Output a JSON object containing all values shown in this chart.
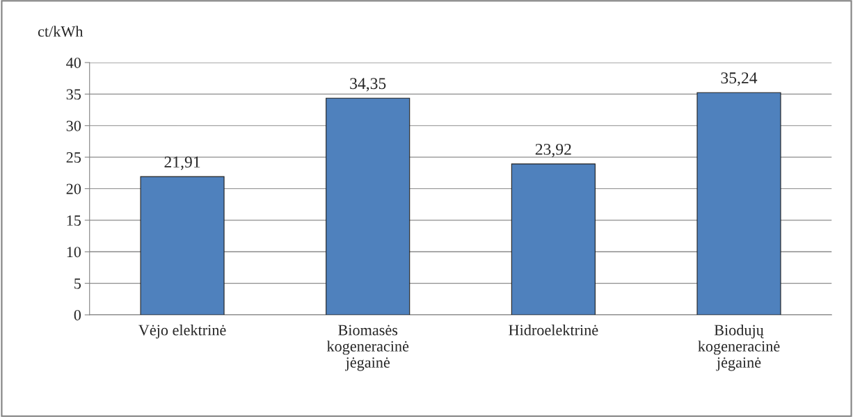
{
  "chart_data": {
    "type": "bar",
    "ylabel": "ct/kWh",
    "categories": [
      "Vėjo elektrinė",
      "Biomasės\nkogeneracinė\njėgainė",
      "Hidroelektrinė",
      "Biodujų\nkogeneracinė\njėgainė"
    ],
    "values": [
      21.91,
      34.35,
      23.92,
      35.24
    ],
    "value_labels": [
      "21,91",
      "34,35",
      "23,92",
      "35,24"
    ],
    "color": "#4f81bd",
    "ylim": [
      0,
      40
    ],
    "yticks": [
      0,
      5,
      10,
      15,
      20,
      25,
      30,
      35,
      40
    ],
    "grid": "y"
  }
}
